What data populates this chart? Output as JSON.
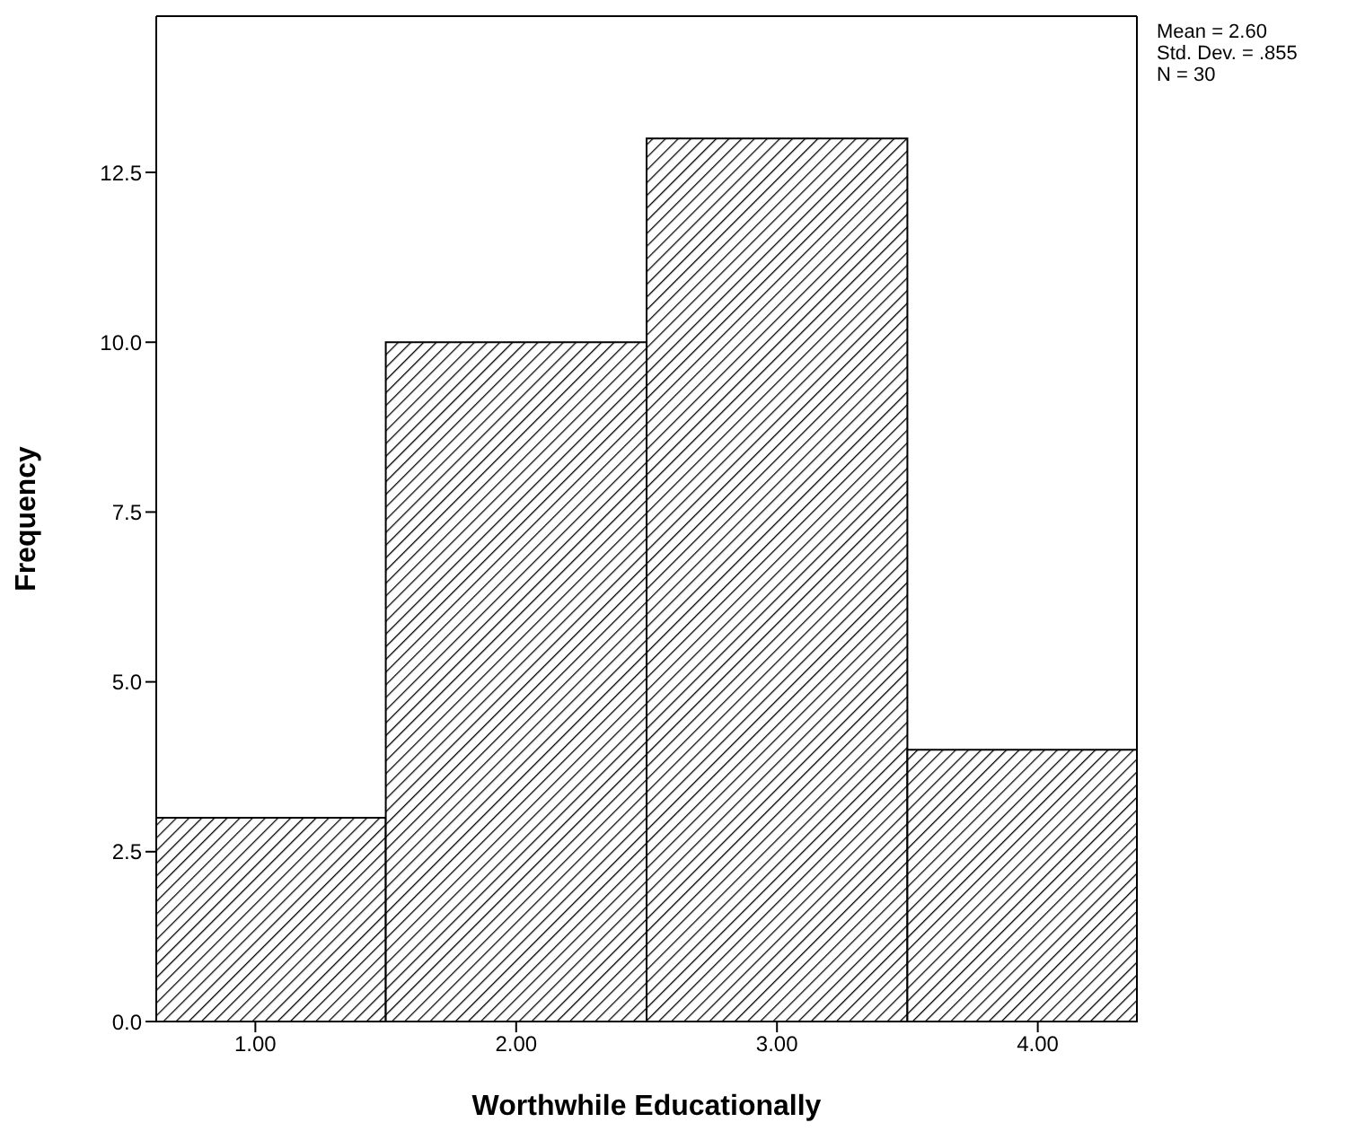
{
  "chart_data": {
    "type": "histogram",
    "xlabel": "Worthwhile Educationally",
    "ylabel": "Frequency",
    "bins": [
      0.62,
      1.5,
      2.5,
      3.5,
      4.38
    ],
    "values": [
      3,
      10,
      13,
      4
    ],
    "color": "#000000",
    "xlim": [
      0.62,
      4.38
    ],
    "xticks": [
      {
        "value": 1,
        "label": "1.00"
      },
      {
        "value": 2,
        "label": "2.00"
      },
      {
        "value": 3,
        "label": "3.00"
      },
      {
        "value": 4,
        "label": "4.00"
      }
    ],
    "ylim": [
      0,
      14.8
    ],
    "yticks": [
      {
        "value": 0,
        "label": "0.0"
      },
      {
        "value": 2.5,
        "label": "2.5"
      },
      {
        "value": 5,
        "label": "5.0"
      },
      {
        "value": 7.5,
        "label": "7.5"
      },
      {
        "value": 10,
        "label": "10.0"
      },
      {
        "value": 12.5,
        "label": "12.5"
      }
    ],
    "grid": false,
    "annotations": [
      "Mean = 2.60",
      "Std. Dev. = .855",
      "N = 30"
    ]
  }
}
